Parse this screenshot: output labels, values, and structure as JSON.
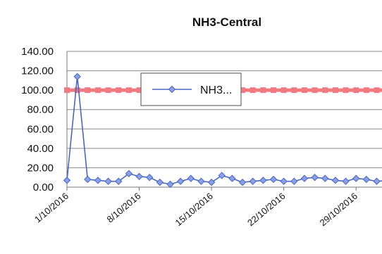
{
  "chart_data": {
    "type": "line",
    "title": "NH3-Central",
    "xlabel": "",
    "ylabel": "",
    "x": [
      "1/10/2016",
      "2/10/2016",
      "3/10/2016",
      "4/10/2016",
      "5/10/2016",
      "6/10/2016",
      "7/10/2016",
      "8/10/2016",
      "9/10/2016",
      "10/10/2016",
      "11/10/2016",
      "12/10/2016",
      "13/10/2016",
      "14/10/2016",
      "15/10/2016",
      "16/10/2016",
      "17/10/2016",
      "18/10/2016",
      "19/10/2016",
      "20/10/2016",
      "21/10/2016",
      "22/10/2016",
      "23/10/2016",
      "24/10/2016",
      "25/10/2016",
      "26/10/2016",
      "27/10/2016",
      "28/10/2016",
      "29/10/2016",
      "30/10/2016",
      "31/10/2016",
      "1/11/2016",
      "2/11/2016"
    ],
    "x_tick_labels": [
      "1/10/2016",
      "8/10/2016",
      "15/10/2016",
      "22/10/2016",
      "29/10/2016"
    ],
    "y_tick_labels": [
      "0.00",
      "20.00",
      "40.00",
      "60.00",
      "80.00",
      "100.00",
      "120.00",
      "140.00"
    ],
    "ylim": [
      0,
      140
    ],
    "grid": true,
    "legend_position": "top-center",
    "series": [
      {
        "name": "NH3...",
        "color": "#4a66c4",
        "marker": "diamond",
        "values": [
          7,
          114,
          8,
          7,
          6,
          6,
          14,
          11,
          10,
          5,
          3,
          6,
          9,
          6,
          5,
          12,
          9,
          5,
          6,
          7,
          8,
          6,
          6,
          9,
          10,
          9,
          7,
          6,
          9,
          8,
          6,
          7,
          7
        ]
      },
      {
        "name": "",
        "color": "#f07a80",
        "marker": "square",
        "values": [
          100,
          100,
          100,
          100,
          100,
          100,
          100,
          100,
          100,
          100,
          100,
          100,
          100,
          100,
          100,
          100,
          100,
          100,
          100,
          100,
          100,
          100,
          100,
          100,
          100,
          100,
          100,
          100,
          100,
          100,
          100,
          100,
          100
        ]
      }
    ]
  }
}
